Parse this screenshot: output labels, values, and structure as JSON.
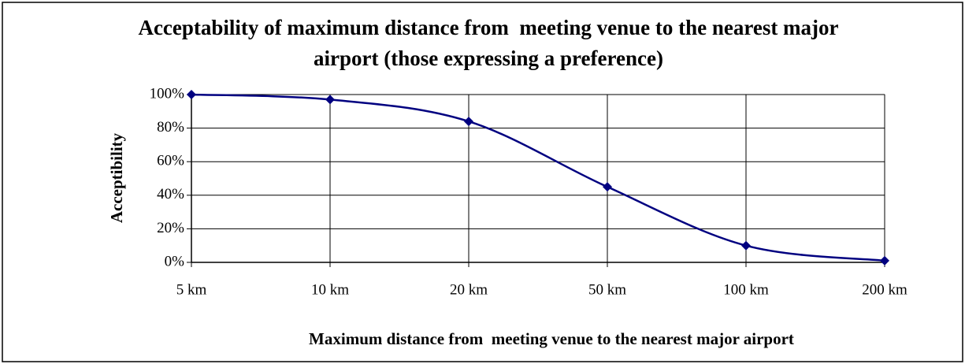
{
  "chart_data": {
    "type": "line",
    "title": "Acceptability of maximum distance from  meeting venue to the nearest major airport (those expressing a preference)",
    "x_label": "Maximum distance from  meeting venue to the nearest major airport",
    "y_label": "Acceptibility",
    "categories": [
      "5 km",
      "10 km",
      "20 km",
      "50 km",
      "100 km",
      "200 km"
    ],
    "series": [
      {
        "name": "Acceptability",
        "color": "#000080",
        "values": [
          100,
          97,
          84,
          45,
          10,
          1
        ]
      }
    ],
    "ylim": [
      0,
      100
    ],
    "yticks": [
      {
        "value": 0,
        "label": "0%"
      },
      {
        "value": 20,
        "label": "20%"
      },
      {
        "value": 40,
        "label": "40%"
      },
      {
        "value": 60,
        "label": "60%"
      },
      {
        "value": 80,
        "label": "80%"
      },
      {
        "value": 100,
        "label": "100%"
      }
    ],
    "grid": true,
    "smooth": true
  }
}
